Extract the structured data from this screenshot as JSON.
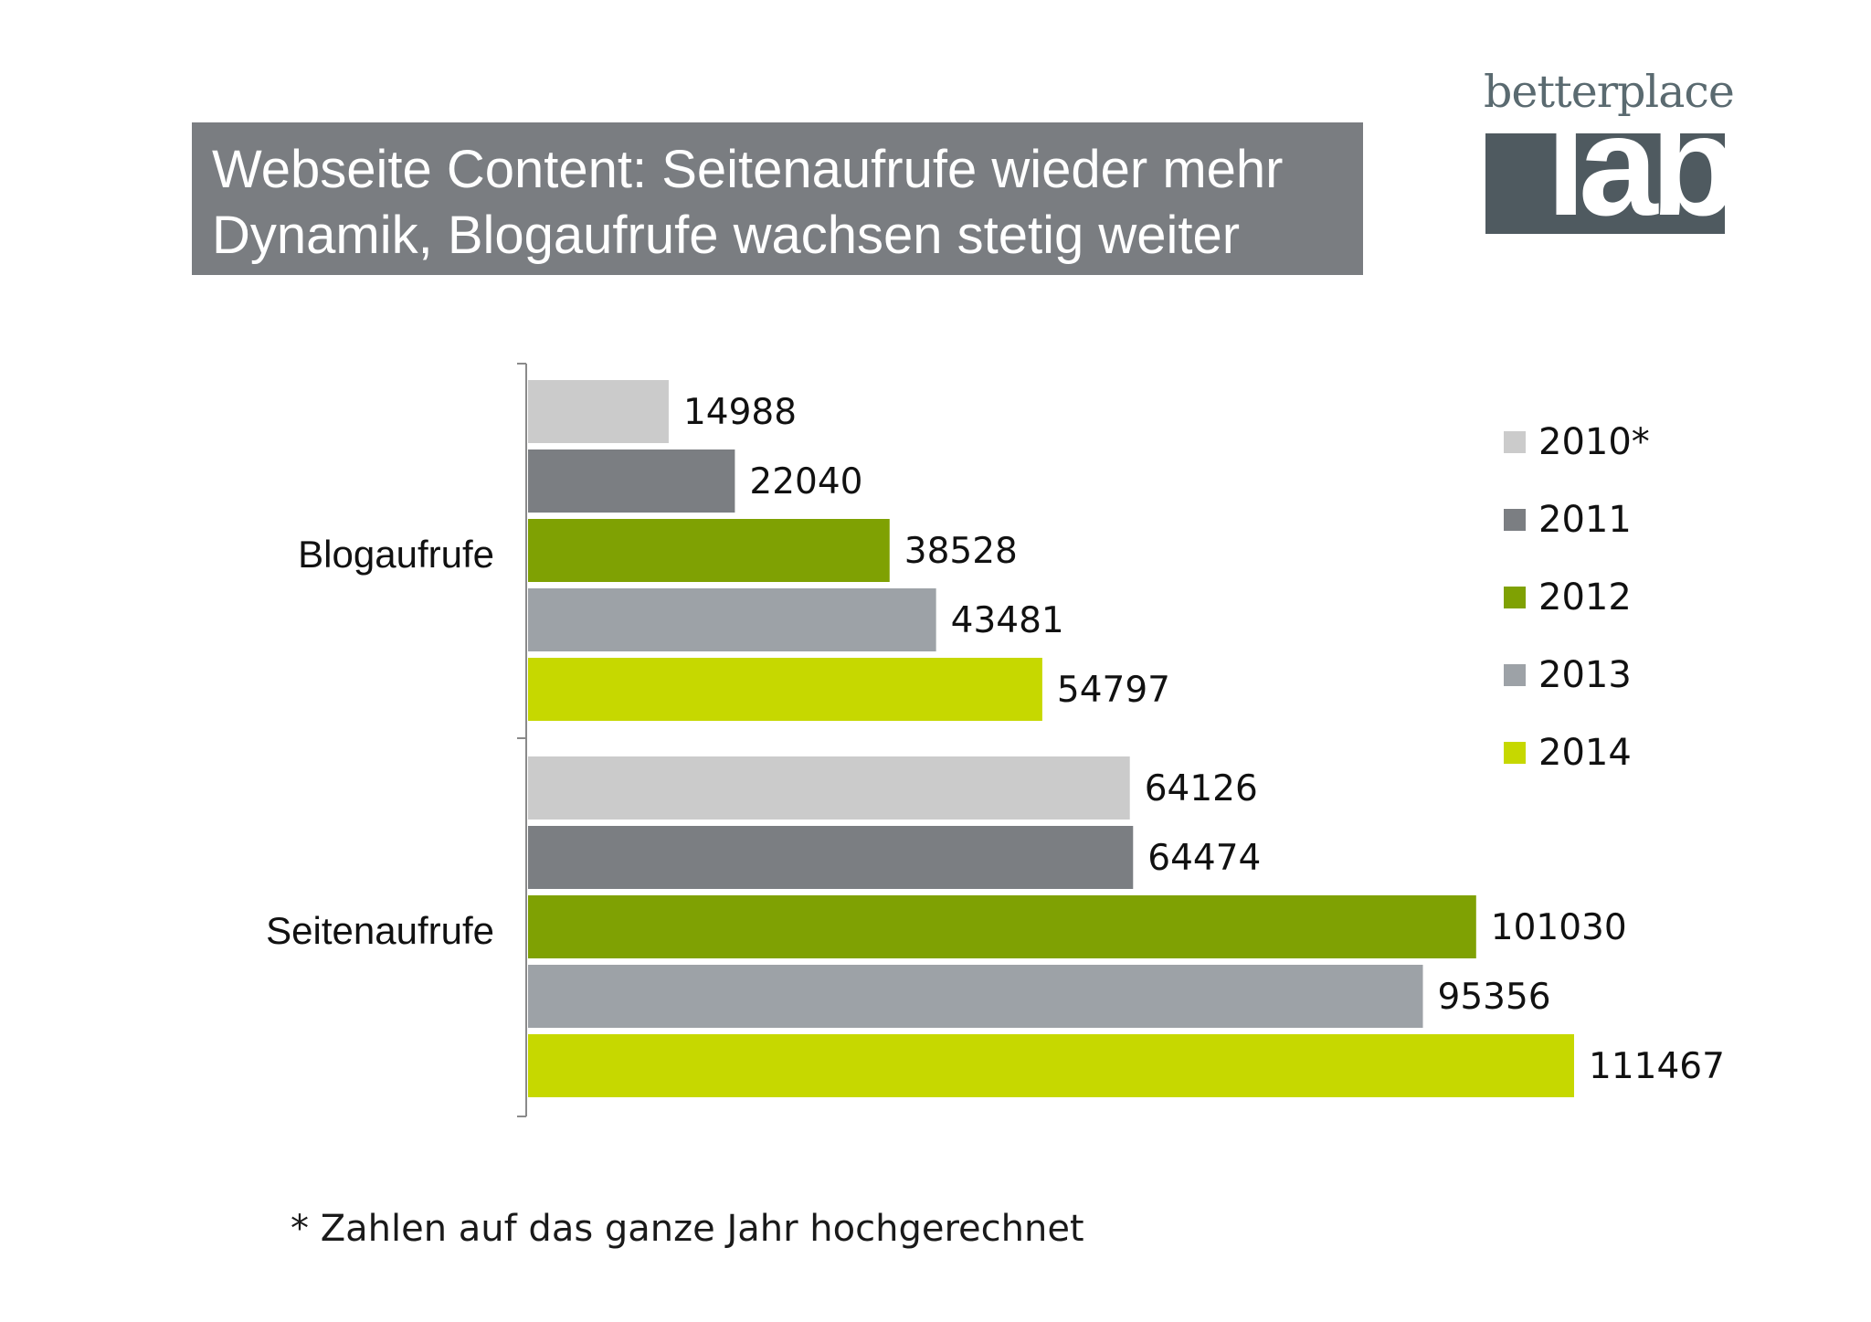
{
  "title": {
    "line1": "Webseite Content: Seitenaufrufe wieder mehr",
    "line2": "Dynamik, Blogaufrufe wachsen stetig weiter"
  },
  "logo": {
    "top": "betterplace",
    "word": "lab"
  },
  "footnote": "* Zahlen auf das ganze Jahr hochgerechnet",
  "chart_data": {
    "type": "bar",
    "orientation": "horizontal",
    "categories": [
      "Blogaufrufe",
      "Seitenaufrufe"
    ],
    "series": [
      {
        "name": "2010*",
        "color": "#cbcbcb",
        "values": [
          14988,
          64126
        ]
      },
      {
        "name": "2011",
        "color": "#7b7e82",
        "values": [
          22040,
          64474
        ]
      },
      {
        "name": "2012",
        "color": "#7fa103",
        "values": [
          38528,
          101030
        ]
      },
      {
        "name": "2013",
        "color": "#9da2a7",
        "values": [
          43481,
          95356
        ]
      },
      {
        "name": "2014",
        "color": "#c6d800",
        "values": [
          54797,
          111467
        ]
      }
    ],
    "xlim": [
      0,
      130000
    ],
    "legend_position": "right",
    "grid": false
  }
}
